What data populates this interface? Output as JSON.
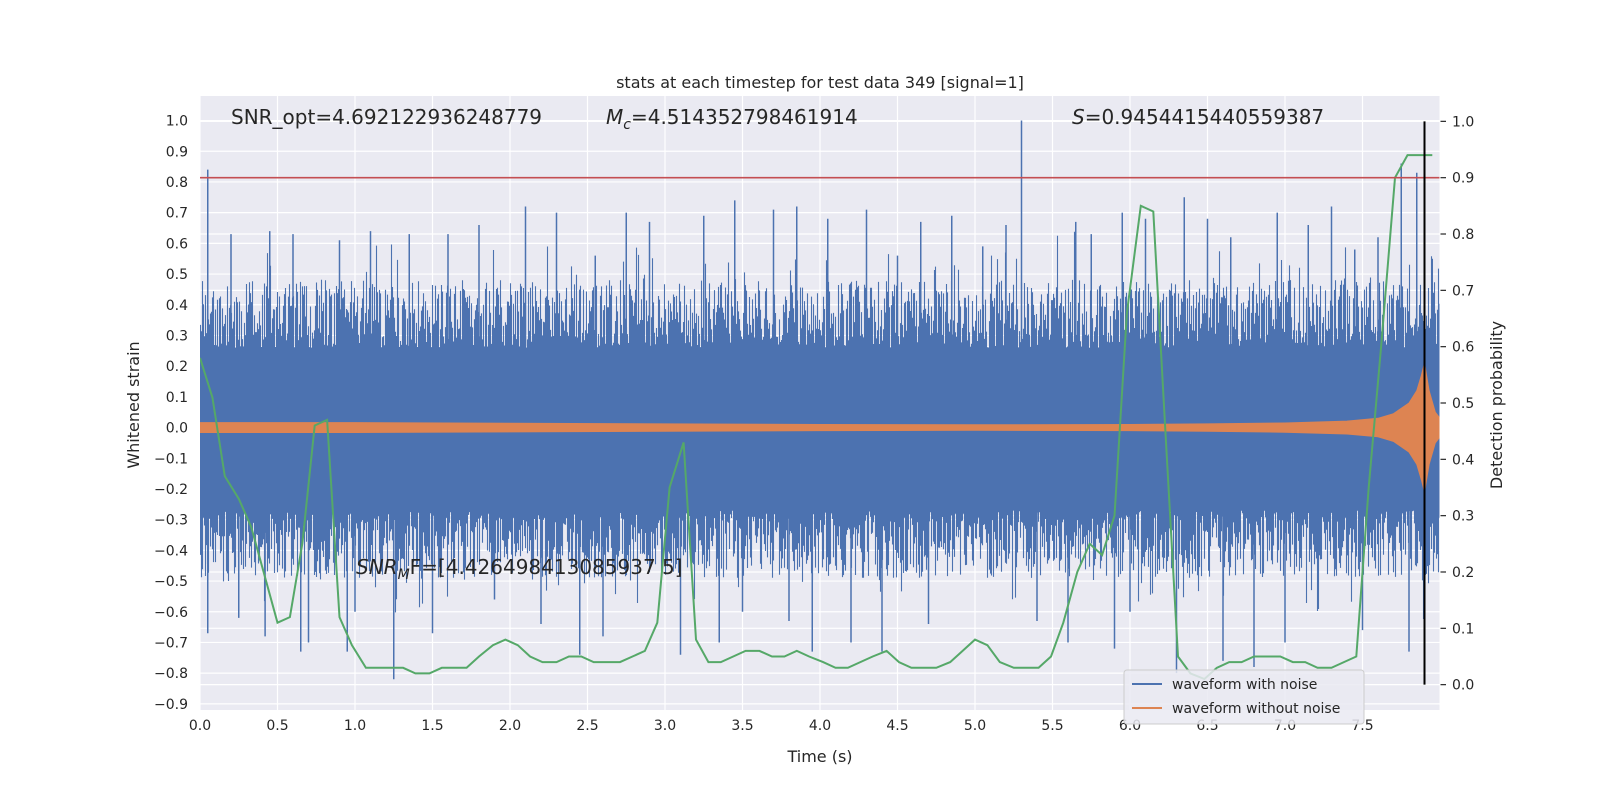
{
  "chart_data": {
    "type": "line",
    "title": "stats at each timestep for test data 349 [signal=1]",
    "xlabel": "Time (s)",
    "ylabel_left": "Whitened strain",
    "ylabel_right": "Detection probability",
    "xlim": [
      0.0,
      8.0
    ],
    "ylim_left": [
      -0.92,
      1.08
    ],
    "ylim_right": [
      -0.045,
      1.045
    ],
    "x_ticks": [
      "0.0",
      "0.5",
      "1.0",
      "1.5",
      "2.0",
      "2.5",
      "3.0",
      "3.5",
      "4.0",
      "4.5",
      "5.0",
      "5.5",
      "6.0",
      "6.5",
      "7.0",
      "7.5"
    ],
    "x_tick_values": [
      0.0,
      0.5,
      1.0,
      1.5,
      2.0,
      2.5,
      3.0,
      3.5,
      4.0,
      4.5,
      5.0,
      5.5,
      6.0,
      6.5,
      7.0,
      7.5
    ],
    "y_left_ticks": [
      "1.0",
      "0.9",
      "0.8",
      "0.7",
      "0.6",
      "0.5",
      "0.4",
      "0.3",
      "0.2",
      "0.1",
      "0.0",
      "−0.1",
      "−0.2",
      "−0.3",
      "−0.4",
      "−0.5",
      "−0.6",
      "−0.7",
      "−0.8",
      "−0.9"
    ],
    "y_left_tick_values": [
      1.0,
      0.9,
      0.8,
      0.7,
      0.6,
      0.5,
      0.4,
      0.3,
      0.2,
      0.1,
      0.0,
      -0.1,
      -0.2,
      -0.3,
      -0.4,
      -0.5,
      -0.6,
      -0.7,
      -0.8,
      -0.9
    ],
    "y_right_ticks": [
      "1.0",
      "0.9",
      "0.8",
      "0.7",
      "0.6",
      "0.5",
      "0.4",
      "0.3",
      "0.2",
      "0.1",
      "0.0"
    ],
    "y_right_tick_values": [
      1.0,
      0.9,
      0.8,
      0.7,
      0.6,
      0.5,
      0.4,
      0.3,
      0.2,
      0.1,
      0.0
    ],
    "grid": true,
    "legend_placement": "lower-right",
    "annotations": {
      "snr_opt": "SNR_opt=4.692122936248779",
      "mc_symbol": "M",
      "mc_subscript": "c",
      "mc_value": "=4.514352798461914",
      "s_symbol": "S",
      "s_value": "=0.9454415440559387",
      "snr_mf_symbol": "SNR",
      "snr_mf_subscript": "M",
      "snr_mf_value": "F=[4.426498413085937 5]"
    },
    "threshold_right": 0.9,
    "vline_x": 7.9,
    "series": [
      {
        "name": "waveform with noise",
        "color": "#4c72b0",
        "axis": "left",
        "band": [
          -0.38,
          0.37
        ],
        "spikes": [
          [
            0.05,
            0.84
          ],
          [
            0.05,
            -0.67
          ],
          [
            0.2,
            0.63
          ],
          [
            0.25,
            -0.62
          ],
          [
            0.45,
            0.64
          ],
          [
            0.42,
            -0.68
          ],
          [
            0.6,
            0.63
          ],
          [
            0.65,
            -0.73
          ],
          [
            0.9,
            0.61
          ],
          [
            0.95,
            -0.73
          ],
          [
            1.1,
            0.64
          ],
          [
            1.25,
            -0.82
          ],
          [
            1.35,
            0.63
          ],
          [
            1.6,
            0.63
          ],
          [
            1.8,
            0.66
          ],
          [
            1.9,
            -0.56
          ],
          [
            2.1,
            0.72
          ],
          [
            2.3,
            0.7
          ],
          [
            2.55,
            0.56
          ],
          [
            2.6,
            -0.68
          ],
          [
            2.75,
            0.7
          ],
          [
            2.9,
            0.67
          ],
          [
            3.1,
            -0.74
          ],
          [
            3.25,
            0.69
          ],
          [
            3.45,
            0.74
          ],
          [
            3.7,
            0.71
          ],
          [
            3.85,
            0.72
          ],
          [
            3.95,
            -0.73
          ],
          [
            4.05,
            0.68
          ],
          [
            4.3,
            0.71
          ],
          [
            4.4,
            -0.73
          ],
          [
            4.5,
            0.56
          ],
          [
            4.65,
            0.67
          ],
          [
            4.85,
            0.69
          ],
          [
            5.05,
            0.59
          ],
          [
            5.2,
            0.66
          ],
          [
            5.3,
            1.0
          ],
          [
            5.4,
            -0.63
          ],
          [
            5.65,
            0.67
          ],
          [
            5.75,
            0.63
          ],
          [
            5.95,
            0.7
          ],
          [
            6.1,
            0.68
          ],
          [
            6.3,
            -0.8
          ],
          [
            6.35,
            0.75
          ],
          [
            6.5,
            0.68
          ],
          [
            6.65,
            0.62
          ],
          [
            6.8,
            -0.78
          ],
          [
            6.95,
            0.7
          ],
          [
            7.15,
            0.66
          ],
          [
            7.3,
            0.72
          ],
          [
            7.45,
            0.58
          ],
          [
            7.6,
            0.62
          ],
          [
            7.75,
            0.86
          ],
          [
            7.8,
            -0.73
          ],
          [
            7.85,
            0.83
          ],
          [
            7.95,
            0.55
          ],
          [
            3.35,
            -0.7
          ],
          [
            3.5,
            -0.6
          ],
          [
            4.7,
            -0.64
          ],
          [
            5.6,
            -0.7
          ],
          [
            6.0,
            -0.6
          ],
          [
            7.0,
            -0.7
          ],
          [
            7.5,
            -0.66
          ],
          [
            1.5,
            -0.67
          ],
          [
            2.2,
            -0.64
          ],
          [
            0.7,
            -0.7
          ],
          [
            3.8,
            -0.63
          ],
          [
            4.2,
            -0.7
          ],
          [
            5.9,
            -0.72
          ],
          [
            6.6,
            -0.76
          ],
          [
            2.45,
            -0.74
          ],
          [
            1.0,
            -0.6
          ]
        ]
      },
      {
        "name": "waveform without noise",
        "color": "#dd8452",
        "axis": "left",
        "envelope_x": [
          0.0,
          1.0,
          2.0,
          3.0,
          4.0,
          5.0,
          6.0,
          6.5,
          7.0,
          7.4,
          7.6,
          7.7,
          7.8,
          7.85,
          7.88,
          7.9,
          7.93,
          7.97,
          8.0
        ],
        "envelope_amp": [
          0.016,
          0.016,
          0.014,
          0.012,
          0.01,
          0.009,
          0.01,
          0.012,
          0.015,
          0.021,
          0.03,
          0.045,
          0.08,
          0.12,
          0.17,
          0.21,
          0.12,
          0.05,
          0.03
        ]
      },
      {
        "name": "",
        "color": "#55a868",
        "axis": "right",
        "x": [
          0.0,
          0.08,
          0.16,
          0.25,
          0.33,
          0.41,
          0.5,
          0.58,
          0.66,
          0.74,
          0.82,
          0.9,
          0.98,
          1.07,
          1.15,
          1.23,
          1.31,
          1.39,
          1.48,
          1.56,
          1.64,
          1.72,
          1.8,
          1.89,
          1.97,
          2.05,
          2.13,
          2.21,
          2.3,
          2.38,
          2.46,
          2.54,
          2.62,
          2.71,
          2.79,
          2.87,
          2.95,
          3.03,
          3.12,
          3.2,
          3.28,
          3.36,
          3.44,
          3.52,
          3.61,
          3.69,
          3.77,
          3.85,
          3.93,
          4.02,
          4.1,
          4.18,
          4.26,
          4.34,
          4.43,
          4.51,
          4.59,
          4.67,
          4.75,
          4.84,
          4.92,
          5.0,
          5.08,
          5.16,
          5.25,
          5.33,
          5.41,
          5.49,
          5.57,
          5.66,
          5.74,
          5.82,
          5.9,
          5.98,
          6.07,
          6.15,
          6.23,
          6.31,
          6.39,
          6.48,
          6.56,
          6.64,
          6.72,
          6.8,
          6.89,
          6.97,
          7.05,
          7.13,
          7.21,
          7.3,
          7.38,
          7.46,
          7.54,
          7.62,
          7.71,
          7.79,
          7.87,
          7.95
        ],
        "values": [
          0.58,
          0.51,
          0.37,
          0.33,
          0.28,
          0.2,
          0.11,
          0.12,
          0.25,
          0.46,
          0.47,
          0.12,
          0.07,
          0.03,
          0.03,
          0.03,
          0.03,
          0.02,
          0.02,
          0.03,
          0.03,
          0.03,
          0.05,
          0.07,
          0.08,
          0.07,
          0.05,
          0.04,
          0.04,
          0.05,
          0.05,
          0.04,
          0.04,
          0.04,
          0.05,
          0.06,
          0.11,
          0.35,
          0.43,
          0.08,
          0.04,
          0.04,
          0.05,
          0.06,
          0.06,
          0.05,
          0.05,
          0.06,
          0.05,
          0.04,
          0.03,
          0.03,
          0.04,
          0.05,
          0.06,
          0.04,
          0.03,
          0.03,
          0.03,
          0.04,
          0.06,
          0.08,
          0.07,
          0.04,
          0.03,
          0.03,
          0.03,
          0.05,
          0.11,
          0.2,
          0.25,
          0.23,
          0.3,
          0.66,
          0.85,
          0.84,
          0.44,
          0.05,
          0.02,
          0.01,
          0.03,
          0.04,
          0.04,
          0.05,
          0.05,
          0.05,
          0.04,
          0.04,
          0.03,
          0.03,
          0.04,
          0.05,
          0.35,
          0.6,
          0.9,
          0.94,
          0.94,
          0.94
        ]
      }
    ]
  }
}
